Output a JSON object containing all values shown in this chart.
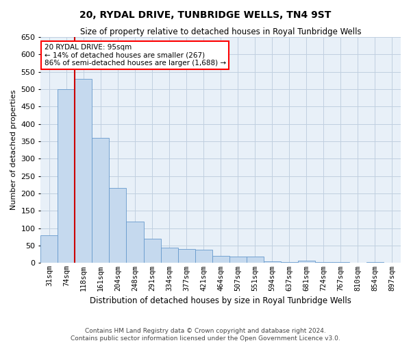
{
  "title": "20, RYDAL DRIVE, TUNBRIDGE WELLS, TN4 9ST",
  "subtitle": "Size of property relative to detached houses in Royal Tunbridge Wells",
  "xlabel": "Distribution of detached houses by size in Royal Tunbridge Wells",
  "ylabel": "Number of detached properties",
  "footer_line1": "Contains HM Land Registry data © Crown copyright and database right 2024.",
  "footer_line2": "Contains public sector information licensed under the Open Government Licence v3.0.",
  "bar_labels": [
    "31sqm",
    "74sqm",
    "118sqm",
    "161sqm",
    "204sqm",
    "248sqm",
    "291sqm",
    "334sqm",
    "377sqm",
    "421sqm",
    "464sqm",
    "507sqm",
    "551sqm",
    "594sqm",
    "637sqm",
    "681sqm",
    "724sqm",
    "767sqm",
    "810sqm",
    "854sqm",
    "897sqm"
  ],
  "bar_values": [
    80,
    500,
    530,
    360,
    215,
    120,
    70,
    45,
    40,
    38,
    20,
    18,
    18,
    5,
    2,
    6,
    2,
    2,
    1,
    2,
    1
  ],
  "bar_color": "#c5d9ee",
  "bar_edgecolor": "#6699cc",
  "annotation_text": "20 RYDAL DRIVE: 95sqm\n← 14% of detached houses are smaller (267)\n86% of semi-detached houses are larger (1,688) →",
  "annotation_box_color": "white",
  "annotation_box_edgecolor": "red",
  "vline_position": 1.5,
  "vline_color": "#cc0000",
  "ylim": [
    0,
    650
  ],
  "yticks": [
    0,
    50,
    100,
    150,
    200,
    250,
    300,
    350,
    400,
    450,
    500,
    550,
    600,
    650
  ],
  "grid_color": "#c0cfe0",
  "background_color": "#e8f0f8",
  "fig_background": "#ffffff"
}
